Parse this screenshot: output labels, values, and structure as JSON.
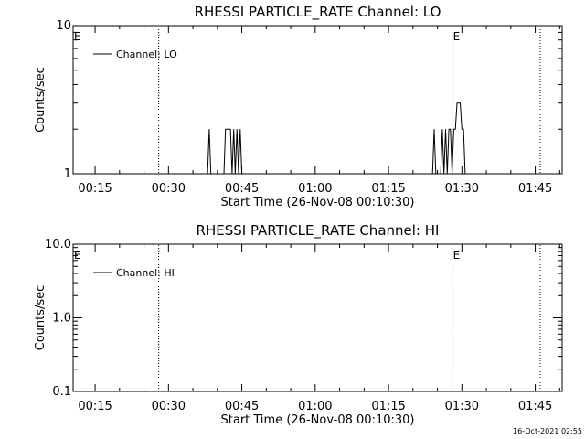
{
  "footer": {
    "timestamp": "16-Oct-2021 02:55"
  },
  "chart_data": [
    {
      "type": "line",
      "title": "RHESSI PARTICLE_RATE Channel: LO",
      "xlabel": "Start Time (26-Nov-08 00:10:30)",
      "ylabel": "Counts/sec",
      "y_scale": "log",
      "ylim": [
        1,
        10
      ],
      "xlim_minutes": [
        10.5,
        110.5
      ],
      "y_tick_labels": [
        "10",
        "1"
      ],
      "x_tick_labels": [
        "00:15",
        "00:30",
        "00:45",
        "01:00",
        "01:15",
        "01:30",
        "01:45"
      ],
      "legend": {
        "label": "Channel: LO",
        "position": "top-left"
      },
      "event_marks": [
        {
          "label": "E",
          "time": "00:10"
        },
        {
          "label": "E",
          "time": "01:28"
        }
      ],
      "vlines": [
        "00:28",
        "01:28",
        "01:46"
      ],
      "series": [
        {
          "name": "Channel: LO",
          "points": [
            [
              "00:38:00",
              1
            ],
            [
              "00:38:20",
              2
            ],
            [
              "00:38:40",
              1
            ],
            [
              "00:41:20",
              1
            ],
            [
              "00:41:40",
              2
            ],
            [
              "00:42:40",
              2
            ],
            [
              "00:43:00",
              1
            ],
            [
              "00:43:20",
              2
            ],
            [
              "00:43:40",
              1
            ],
            [
              "00:44:00",
              2
            ],
            [
              "00:44:20",
              1
            ],
            [
              "00:44:40",
              2
            ],
            [
              "00:45:00",
              1
            ],
            [
              "01:24:00",
              1
            ],
            [
              "01:24:20",
              2
            ],
            [
              "01:24:40",
              1
            ],
            [
              "01:25:40",
              1
            ],
            [
              "01:26:00",
              2
            ],
            [
              "01:26:20",
              1
            ],
            [
              "01:26:40",
              2
            ],
            [
              "01:27:00",
              1
            ],
            [
              "01:27:20",
              2
            ],
            [
              "01:27:40",
              2
            ],
            [
              "01:28:00",
              1
            ],
            [
              "01:28:20",
              2
            ],
            [
              "01:28:40",
              2
            ],
            [
              "01:29:00",
              3
            ],
            [
              "01:29:20",
              3
            ],
            [
              "01:29:40",
              3
            ],
            [
              "01:30:00",
              2
            ],
            [
              "01:30:20",
              2
            ],
            [
              "01:30:40",
              1
            ],
            [
              "01:31:00",
              1
            ]
          ]
        }
      ]
    },
    {
      "type": "line",
      "title": "RHESSI PARTICLE_RATE Channel: HI",
      "xlabel": "Start Time (26-Nov-08 00:10:30)",
      "ylabel": "Counts/sec",
      "y_scale": "log",
      "ylim": [
        0.1,
        10
      ],
      "xlim_minutes": [
        10.5,
        110.5
      ],
      "y_tick_labels": [
        "10.0",
        "1.0",
        "0.1"
      ],
      "x_tick_labels": [
        "00:15",
        "00:30",
        "00:45",
        "01:00",
        "01:15",
        "01:30",
        "01:45"
      ],
      "legend": {
        "label": "Channel: HI",
        "position": "top-left"
      },
      "event_marks": [
        {
          "label": "E",
          "time": "00:10"
        },
        {
          "label": "E",
          "time": "01:28"
        }
      ],
      "vlines": [
        "00:28",
        "01:28",
        "01:46"
      ],
      "series": [
        {
          "name": "Channel: HI",
          "points": []
        }
      ]
    }
  ]
}
